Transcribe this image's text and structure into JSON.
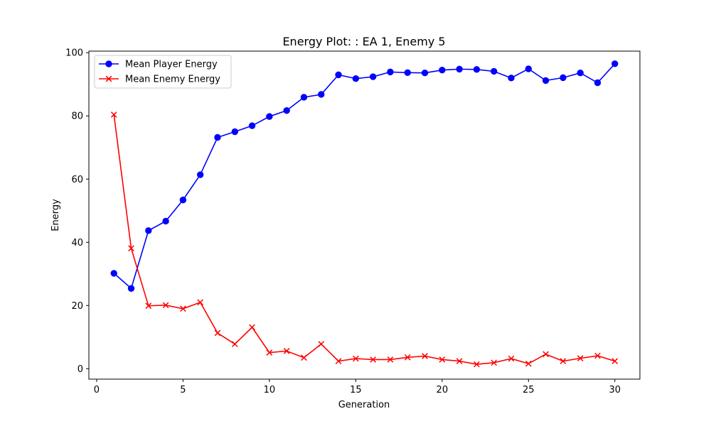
{
  "chart_data": {
    "type": "line",
    "title": "Energy Plot: : EA 1, Enemy 5",
    "xlabel": "Generation",
    "ylabel": "Energy",
    "xlim": [
      -0.45,
      31.45
    ],
    "ylim": [
      -3.3,
      100.5
    ],
    "x_ticks": [
      0,
      5,
      10,
      15,
      20,
      25,
      30
    ],
    "y_ticks": [
      0,
      20,
      40,
      60,
      80,
      100
    ],
    "grid": false,
    "legend_position": "top-left",
    "x": [
      1,
      2,
      3,
      4,
      5,
      6,
      7,
      8,
      9,
      10,
      11,
      12,
      13,
      14,
      15,
      16,
      17,
      18,
      19,
      20,
      21,
      22,
      23,
      24,
      25,
      26,
      27,
      28,
      29,
      30
    ],
    "series": [
      {
        "name": "Mean Player Energy",
        "color": "#0000ff",
        "marker": "circle",
        "values": [
          30.2,
          25.4,
          43.7,
          46.7,
          53.4,
          61.4,
          73.2,
          75.0,
          76.9,
          79.8,
          81.7,
          85.9,
          86.8,
          93.0,
          91.8,
          92.4,
          93.9,
          93.7,
          93.6,
          94.5,
          94.8,
          94.7,
          94.1,
          92.0,
          94.9,
          91.2,
          92.1,
          93.6,
          90.5,
          96.5
        ]
      },
      {
        "name": "Mean Enemy Energy",
        "color": "#ff0000",
        "marker": "x",
        "values": [
          80.4,
          38.1,
          19.9,
          20.1,
          19.0,
          21.0,
          11.3,
          7.8,
          13.1,
          5.1,
          5.6,
          3.5,
          7.8,
          2.4,
          3.2,
          2.9,
          2.9,
          3.6,
          4.0,
          2.9,
          2.4,
          1.4,
          1.9,
          3.2,
          1.6,
          4.6,
          2.4,
          3.3,
          4.1,
          2.4
        ]
      }
    ]
  }
}
